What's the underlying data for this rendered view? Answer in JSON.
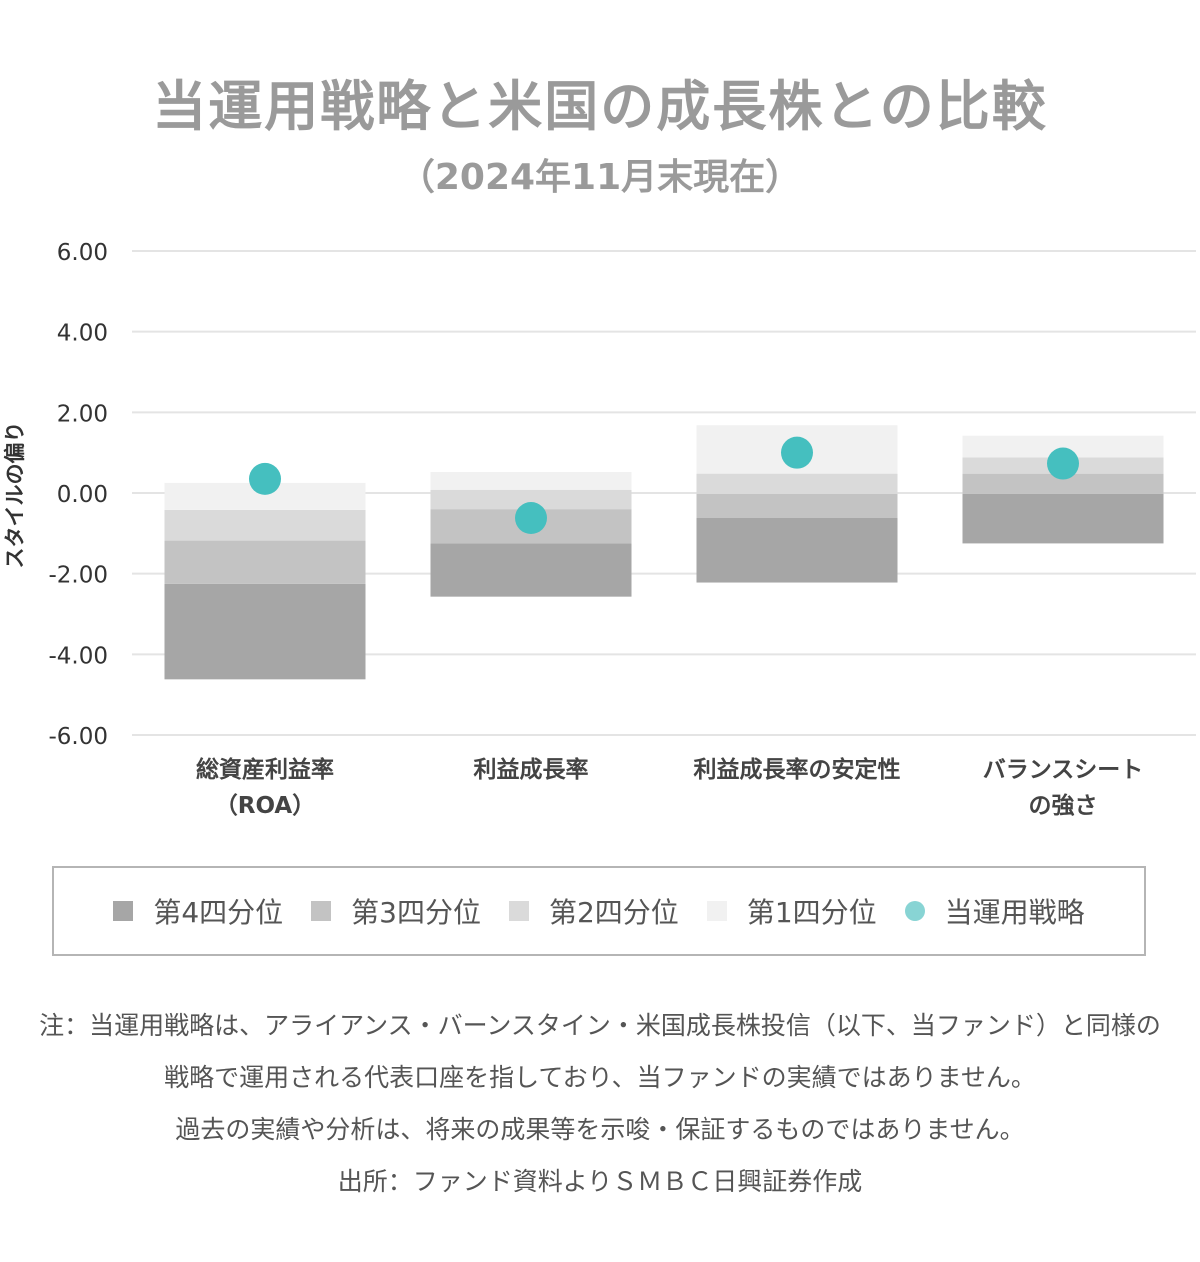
{
  "title": "当運用戦略と米国の成長株との比較",
  "subtitle": "（2024年11月末現在）",
  "chart_data": {
    "type": "bar",
    "subtype": "floating-stacked-quartile",
    "ylabel": "スタイルの偏り",
    "ylim": [
      -6,
      6
    ],
    "yticks": [
      "6.00",
      "4.00",
      "2.00",
      "0.00",
      "-2.00",
      "-4.00",
      "-6.00"
    ],
    "ytick_values": [
      6,
      4,
      2,
      0,
      -2,
      -4,
      -6
    ],
    "grid": true,
    "categories": [
      {
        "lines": [
          "総資産利益率",
          "（ROA）"
        ]
      },
      {
        "lines": [
          "利益成長率"
        ]
      },
      {
        "lines": [
          "利益成長率の安定性"
        ]
      },
      {
        "lines": [
          "バランスシート",
          "の強さ"
        ]
      }
    ],
    "quartile_bounds": [
      [
        -4.62,
        -2.25,
        -1.18,
        -0.42,
        0.25
      ],
      [
        -2.57,
        -1.25,
        -0.4,
        0.08,
        0.52
      ],
      [
        -2.22,
        -0.62,
        -0.02,
        0.48,
        1.68
      ],
      [
        -1.25,
        -0.02,
        0.48,
        0.88,
        1.42
      ]
    ],
    "series": [
      {
        "name": "第4四分位",
        "color": "#a6a6a6"
      },
      {
        "name": "第3四分位",
        "color": "#c3c3c3"
      },
      {
        "name": "第2四分位",
        "color": "#dadada"
      },
      {
        "name": "第1四分位",
        "color": "#f1f1f1"
      },
      {
        "name": "当運用戦略",
        "color": "#45bfbf",
        "type": "scatter",
        "values": [
          0.35,
          -0.62,
          1.0,
          0.73
        ]
      }
    ],
    "legend_position": "bottom"
  },
  "legend": [
    {
      "label": "第4四分位",
      "color": "#a6a6a6",
      "shape": "square"
    },
    {
      "label": "第3四分位",
      "color": "#c3c3c3",
      "shape": "square"
    },
    {
      "label": "第2四分位",
      "color": "#dadada",
      "shape": "square"
    },
    {
      "label": "第1四分位",
      "color": "#f1f1f1",
      "shape": "square"
    },
    {
      "label": "当運用戦略",
      "color": "#88d4d4",
      "shape": "circle"
    }
  ],
  "notes": [
    "注：当運用戦略は、アライアンス・バーンスタイン・米国成長株投信（以下、当ファンド）と同様の",
    "戦略で運用される代表口座を指しており、当ファンドの実績ではありません。",
    "過去の実績や分析は、将来の成果等を示唆・保証するものではありません。",
    "出所：ファンド資料よりＳＭＢＣ日興証券作成"
  ]
}
